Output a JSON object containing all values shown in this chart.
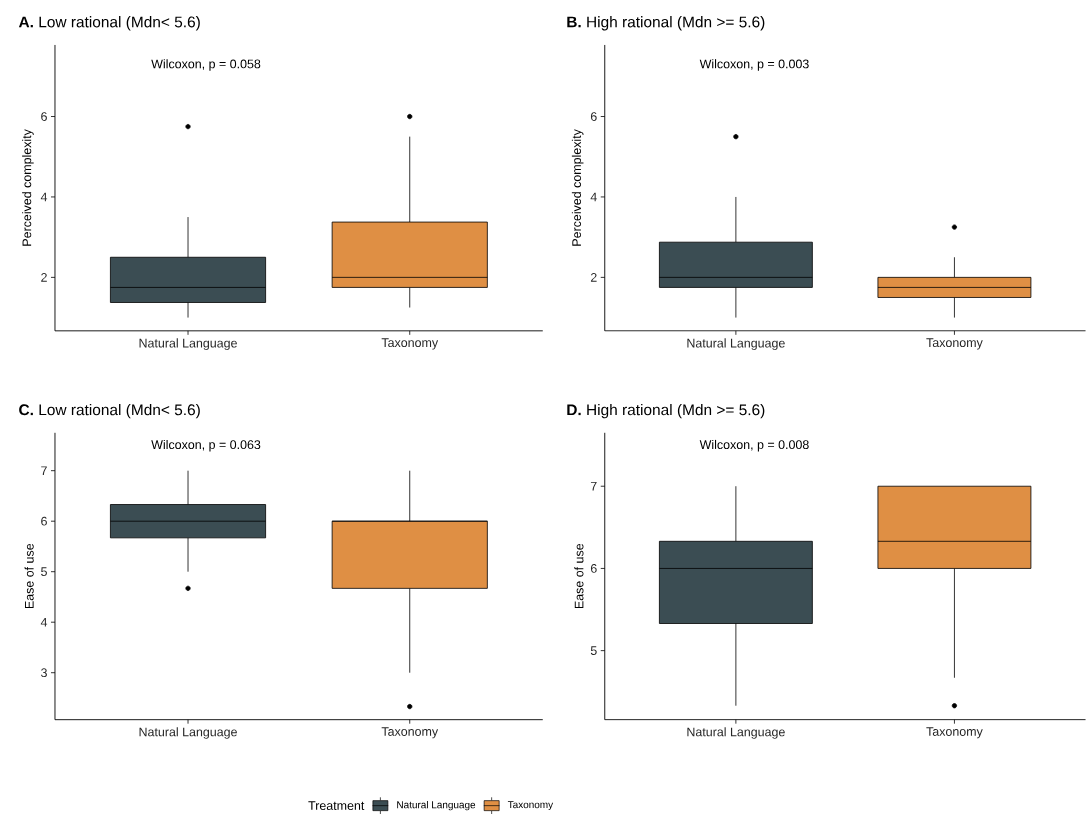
{
  "chart_data": [
    {
      "type": "box",
      "title": "**A.** Low rational (Mdn< 5.6)",
      "ylabel": "Perceived complexity",
      "annotations": [
        "Wilcoxon, p = 0.058"
      ],
      "categories": [
        "Natural Language",
        "Taxonomy"
      ],
      "ylim": [
        0.67,
        7.78
      ],
      "yticks": [
        2,
        4,
        6
      ],
      "series": [
        {
          "color": "#3b4d53",
          "boxes": [
            {
              "low": 1,
              "q1": 1.375,
              "median": 1.75,
              "q3": 2.5,
              "high": 3.5,
              "outliers": [
                5.75
              ]
            },
            null
          ]
        },
        {
          "color": "#df8f44",
          "boxes": [
            null,
            {
              "low": 1.25,
              "q1": 1.75,
              "median": 2,
              "q3": 3.375,
              "high": 5.5,
              "outliers": [
                6
              ]
            }
          ]
        }
      ]
    },
    {
      "type": "box",
      "title": "**B.** High rational (Mdn >= 5.6)",
      "ylabel": "Perceived complexity",
      "annotations": [
        "Wilcoxon, p = 0.003"
      ],
      "categories": [
        "Natural Language",
        "Taxonomy"
      ],
      "ylim": [
        0.67,
        7.78
      ],
      "yticks": [
        2,
        4,
        6
      ],
      "series": [
        {
          "color": "#3b4d53",
          "boxes": [
            {
              "low": 1,
              "q1": 1.75,
              "median": 2,
              "q3": 2.875,
              "high": 4,
              "outliers": [
                5.5
              ]
            },
            null
          ]
        },
        {
          "color": "#df8f44",
          "boxes": [
            null,
            {
              "low": 1,
              "q1": 1.5,
              "median": 1.75,
              "q3": 2,
              "high": 2.5,
              "outliers": [
                3.25
              ]
            }
          ]
        }
      ]
    },
    {
      "type": "box",
      "title": "**C.** Low rational (Mdn< 5.6)",
      "ylabel": "Ease of use",
      "annotations": [
        "Wilcoxon, p = 0.063"
      ],
      "categories": [
        "Natural Language",
        "Taxonomy"
      ],
      "ylim": [
        2.07,
        7.75
      ],
      "yticks": [
        3,
        4,
        5,
        6,
        7
      ],
      "series": [
        {
          "color": "#3b4d53",
          "boxes": [
            {
              "low": 5,
              "q1": 5.67,
              "median": 6,
              "q3": 6.33,
              "high": 7,
              "outliers": [
                4.67
              ]
            },
            null
          ]
        },
        {
          "color": "#df8f44",
          "boxes": [
            null,
            {
              "low": 3,
              "q1": 4.67,
              "median": 6,
              "q3": 6,
              "high": 7,
              "outliers": [
                2.33
              ]
            }
          ]
        }
      ]
    },
    {
      "type": "box",
      "title": "**D.** High rational (Mdn >= 5.6)",
      "ylabel": "Ease of use",
      "annotations": [
        "Wilcoxon, p = 0.008"
      ],
      "categories": [
        "Natural Language",
        "Taxonomy"
      ],
      "ylim": [
        4.16,
        7.65
      ],
      "yticks": [
        5,
        6,
        7
      ],
      "legend": "bottom",
      "legend_title": "Treatment",
      "series": [
        {
          "name": "Natural Language",
          "color": "#3b4d53",
          "boxes": [
            {
              "low": 4.33,
              "q1": 5.33,
              "median": 6,
              "q3": 6.33,
              "high": 7
            },
            null
          ]
        },
        {
          "name": "Taxonomy",
          "color": "#df8f44",
          "boxes": [
            null,
            {
              "low": 4.67,
              "q1": 6,
              "median": 6.33,
              "q3": 7,
              "high": 7,
              "outliers": [
                4.33
              ]
            }
          ]
        }
      ]
    }
  ]
}
